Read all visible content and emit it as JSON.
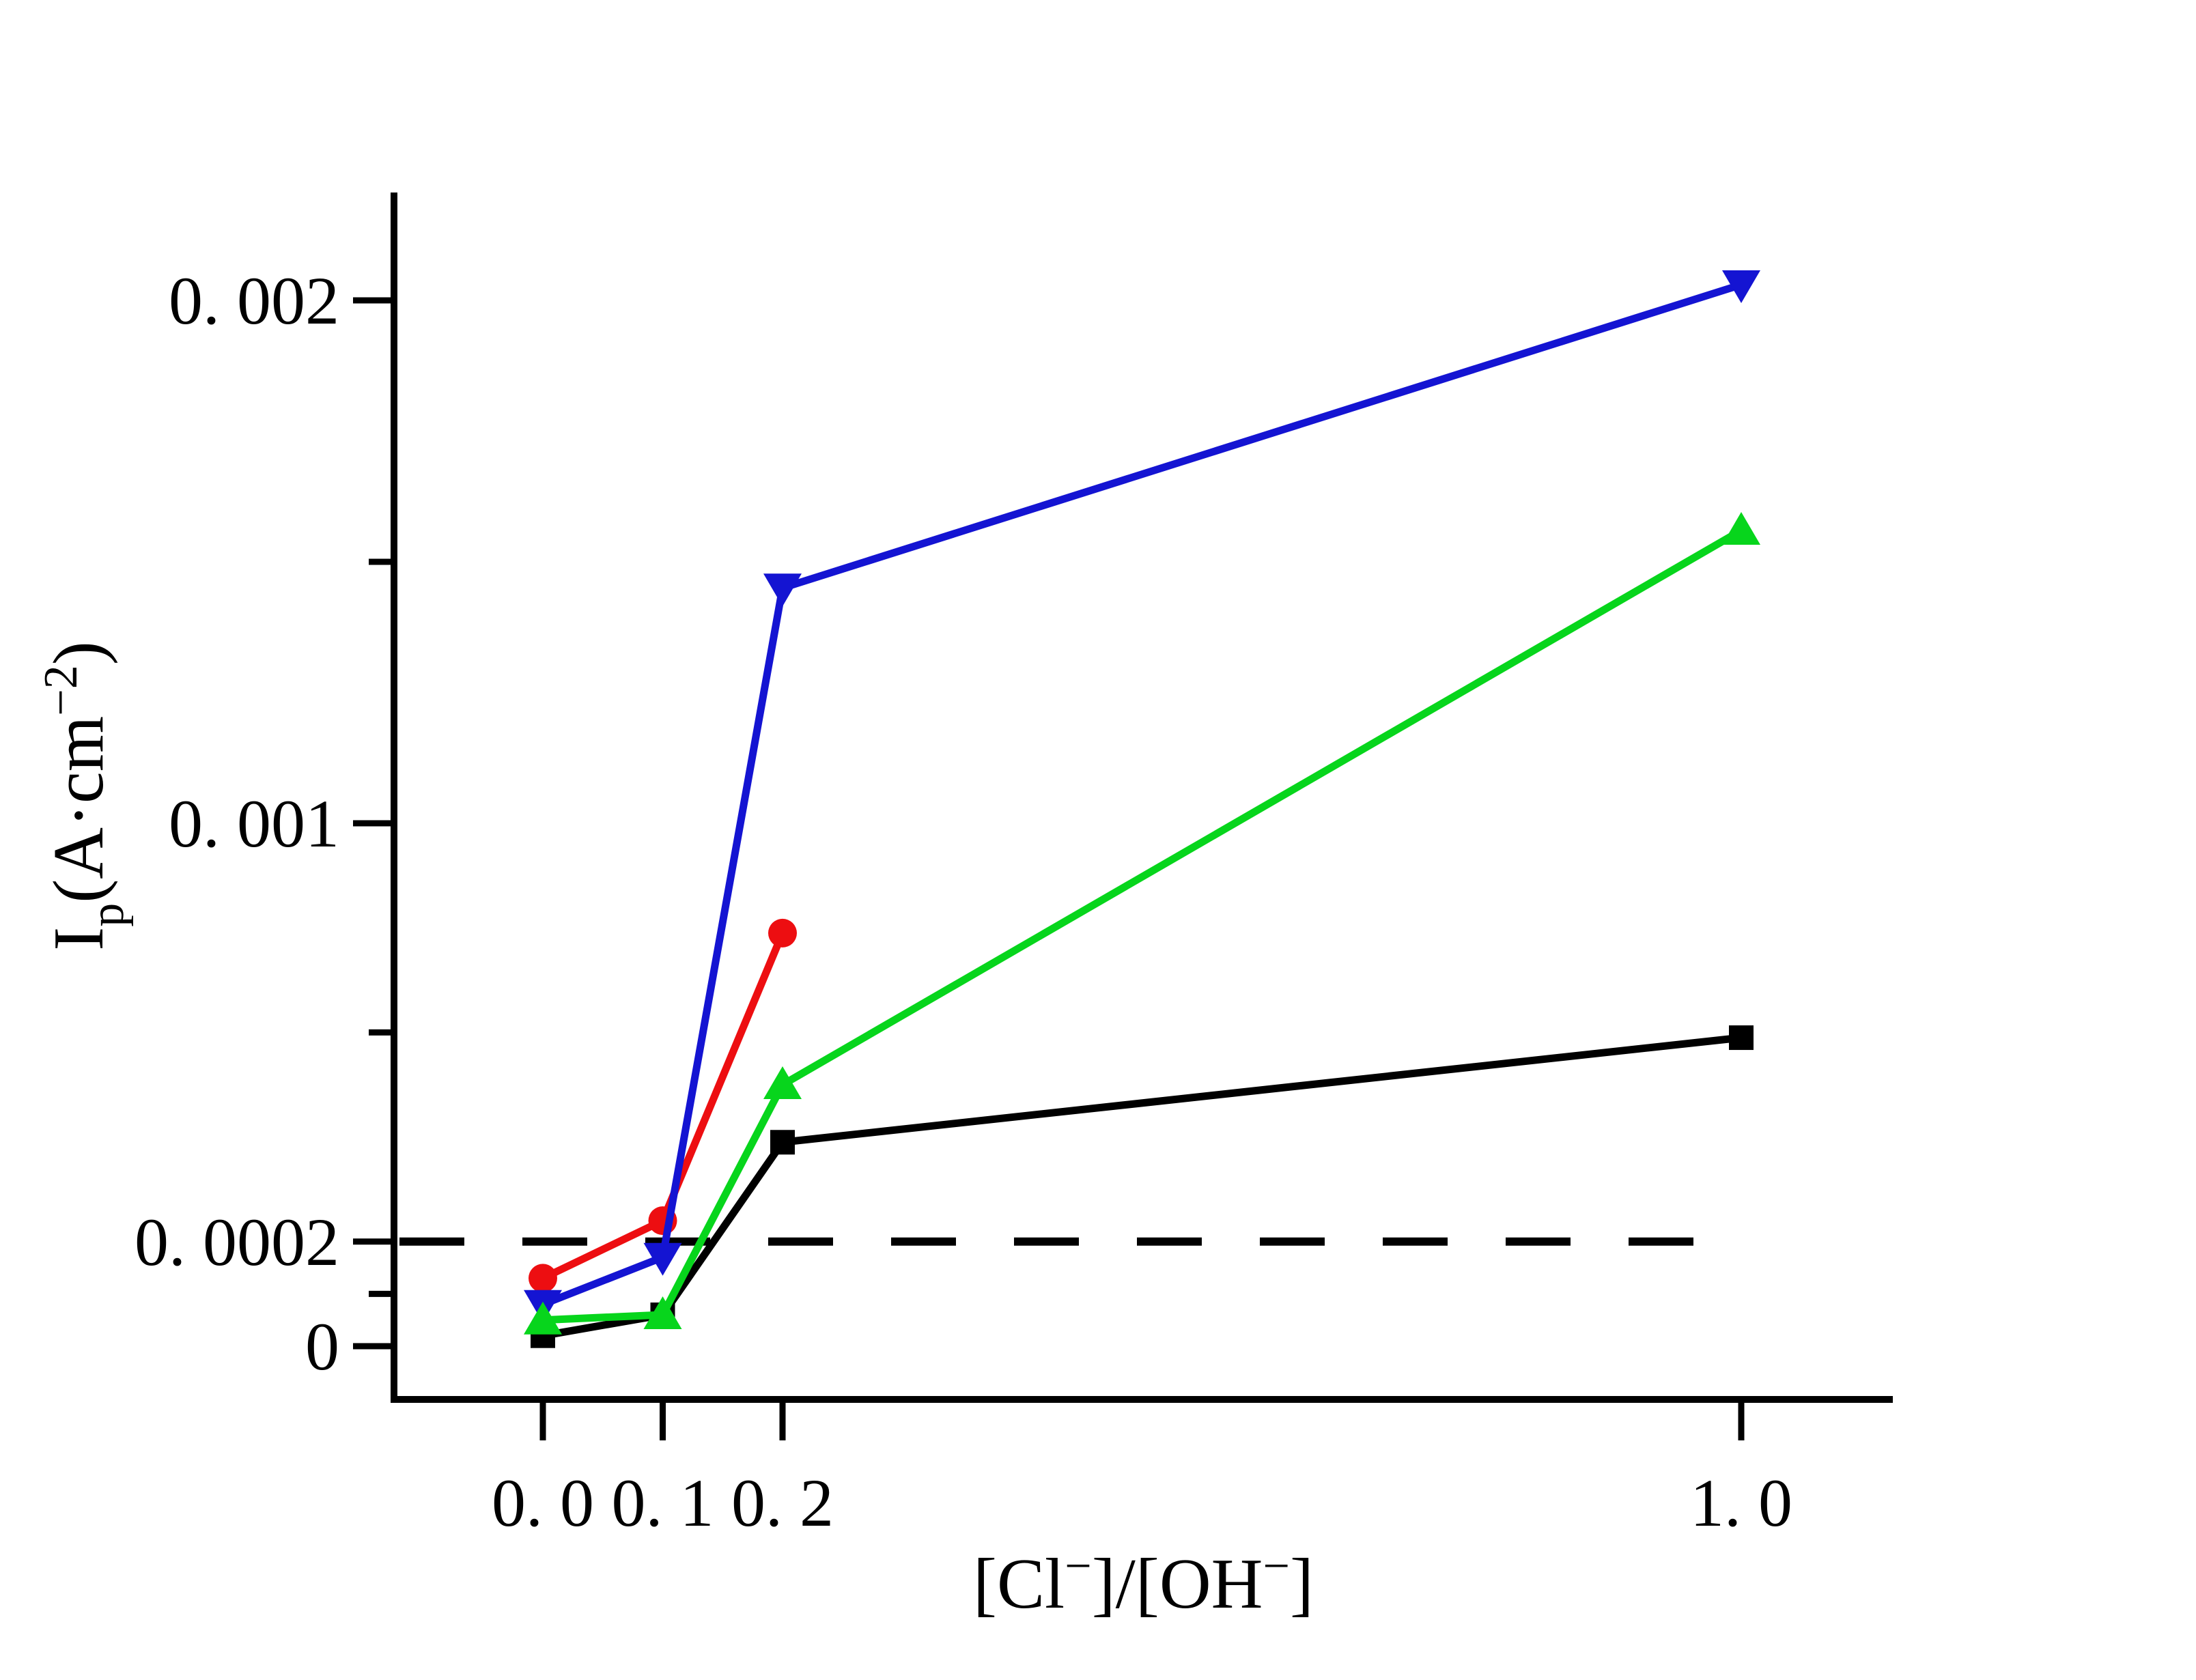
{
  "chart_data": {
    "type": "line",
    "title": "",
    "xlabel": "[Cl−]/[OH−]",
    "xlabel_parts": {
      "seg1": "[Cl",
      "sup1": "−",
      "seg2": "]/[OH",
      "sup2": "−",
      "seg3": "]"
    },
    "ylabel": "Ip (A·cm−2)",
    "ylabel_parts": {
      "base": "I",
      "sub": "p",
      "seg1": "(A·cm",
      "sup": "−2",
      "seg2": ")"
    },
    "x_axis": {
      "range": [
        -0.125,
        1.127
      ],
      "ticks": [
        {
          "value": 0.0,
          "label": "0. 0"
        },
        {
          "value": 0.1,
          "label": "0. 1"
        },
        {
          "value": 0.2,
          "label": "0. 2"
        },
        {
          "value": 1.0,
          "label": "1. 0"
        }
      ]
    },
    "y_axis": {
      "range": [
        -0.000102,
        0.002207
      ],
      "ticks": [
        {
          "value": 0,
          "label": "0"
        },
        {
          "value": 0.0002,
          "label": "0. 0002"
        },
        {
          "value": 0.001,
          "label": "0. 001"
        },
        {
          "value": 0.002,
          "label": "0. 002"
        }
      ],
      "minor_ticks": [
        0.0001,
        0.0006,
        0.0015
      ]
    },
    "threshold_line": {
      "y": 0.0002,
      "style": "dashed",
      "color": "#000000"
    },
    "grid": false,
    "legend": null,
    "series": [
      {
        "name": "black-squares",
        "marker": "square",
        "color": "#000000",
        "x": [
          0.0,
          0.1,
          0.2,
          1.0
        ],
        "y": [
          2e-05,
          6e-05,
          0.00039,
          0.00059
        ]
      },
      {
        "name": "red-circles",
        "marker": "circle",
        "color": "#ed0e11",
        "x": [
          0.0,
          0.1,
          0.2
        ],
        "y": [
          0.00013,
          0.00024,
          0.00079
        ]
      },
      {
        "name": "blue-down-triangles",
        "marker": "triangle-down",
        "color": "#1414d2",
        "x": [
          0.0,
          0.1,
          0.2,
          1.0
        ],
        "y": [
          8e-05,
          0.00017,
          0.00145,
          0.00203
        ]
      },
      {
        "name": "green-up-triangles",
        "marker": "triangle-up",
        "color": "#07d51c",
        "x": [
          0.0,
          0.1,
          0.2,
          1.0
        ],
        "y": [
          5e-05,
          6e-05,
          0.0005,
          0.00156
        ]
      }
    ]
  }
}
